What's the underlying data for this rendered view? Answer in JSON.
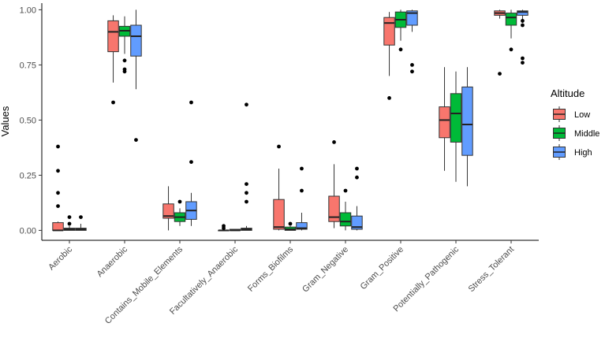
{
  "chart_data": {
    "type": "boxplot",
    "title": "",
    "xlabel": "",
    "ylabel": "Values",
    "ylim": [
      -0.045,
      1.03
    ],
    "yticks": [
      0.0,
      0.25,
      0.5,
      0.75,
      1.0
    ],
    "ytick_labels": [
      "0.00",
      "0.25",
      "0.50",
      "0.75",
      "1.00"
    ],
    "grid": false,
    "legend": {
      "title": "Altitude",
      "position": "right"
    },
    "categories": [
      "Aerobic",
      "Anaerobic",
      "Contains_Mobile_Elements",
      "Facultatively_Anaerobic",
      "Forms_Biofilms",
      "Gram_Negative",
      "Gram_Positive",
      "Potentially_Pathogenic",
      "Stress_Tolerant"
    ],
    "series": [
      {
        "name": "Low",
        "color": "#F8766D",
        "boxes": [
          {
            "whislo": 0.0,
            "q1": 0.0,
            "med": 0.0,
            "q3": 0.035,
            "whishi": 0.04,
            "fliers": [
              0.11,
              0.17,
              0.27,
              0.38
            ]
          },
          {
            "whislo": 0.67,
            "q1": 0.81,
            "med": 0.9,
            "q3": 0.95,
            "whishi": 0.975,
            "fliers": [
              0.58
            ]
          },
          {
            "whislo": 0.0,
            "q1": 0.055,
            "med": 0.065,
            "q3": 0.12,
            "whishi": 0.2,
            "fliers": []
          },
          {
            "whislo": 0.0,
            "q1": 0.0,
            "med": 0.0,
            "q3": 0.0,
            "whishi": 0.0,
            "fliers": [
              0.01,
              0.02
            ]
          },
          {
            "whislo": 0.0,
            "q1": 0.005,
            "med": 0.015,
            "q3": 0.14,
            "whishi": 0.28,
            "fliers": [
              0.38
            ]
          },
          {
            "whislo": 0.01,
            "q1": 0.04,
            "med": 0.06,
            "q3": 0.155,
            "whishi": 0.3,
            "fliers": [
              0.4
            ]
          },
          {
            "whislo": 0.7,
            "q1": 0.84,
            "med": 0.94,
            "q3": 0.965,
            "whishi": 0.99,
            "fliers": [
              0.6
            ]
          },
          {
            "whislo": 0.27,
            "q1": 0.42,
            "med": 0.5,
            "q3": 0.56,
            "whishi": 0.74,
            "fliers": []
          },
          {
            "whislo": 0.96,
            "q1": 0.975,
            "med": 0.985,
            "q3": 0.995,
            "whishi": 1.0,
            "fliers": [
              0.71
            ]
          }
        ]
      },
      {
        "name": "Middle",
        "color": "#00BA38",
        "boxes": [
          {
            "whislo": 0.0,
            "q1": 0.0,
            "med": 0.005,
            "q3": 0.01,
            "whishi": 0.02,
            "fliers": [
              0.03,
              0.06
            ]
          },
          {
            "whislo": 0.8,
            "q1": 0.88,
            "med": 0.905,
            "q3": 0.925,
            "whishi": 0.97,
            "fliers": [
              0.72,
              0.73,
              0.77
            ]
          },
          {
            "whislo": 0.02,
            "q1": 0.04,
            "med": 0.06,
            "q3": 0.08,
            "whishi": 0.1,
            "fliers": [
              0.13
            ]
          },
          {
            "whislo": 0.0,
            "q1": 0.0,
            "med": 0.0,
            "q3": 0.005,
            "whishi": 0.005,
            "fliers": []
          },
          {
            "whislo": 0.0,
            "q1": 0.0,
            "med": 0.005,
            "q3": 0.015,
            "whishi": 0.02,
            "fliers": [
              0.03
            ]
          },
          {
            "whislo": 0.0,
            "q1": 0.02,
            "med": 0.04,
            "q3": 0.08,
            "whishi": 0.13,
            "fliers": [
              0.18
            ]
          },
          {
            "whislo": 0.86,
            "q1": 0.92,
            "med": 0.955,
            "q3": 0.99,
            "whishi": 1.0,
            "fliers": [
              0.82
            ]
          },
          {
            "whislo": 0.22,
            "q1": 0.4,
            "med": 0.53,
            "q3": 0.62,
            "whishi": 0.72,
            "fliers": []
          },
          {
            "whislo": 0.87,
            "q1": 0.93,
            "med": 0.965,
            "q3": 0.985,
            "whishi": 1.0,
            "fliers": [
              0.82
            ]
          }
        ]
      },
      {
        "name": "High",
        "color": "#619CFF",
        "boxes": [
          {
            "whislo": 0.0,
            "q1": 0.0,
            "med": 0.005,
            "q3": 0.01,
            "whishi": 0.03,
            "fliers": [
              0.06
            ]
          },
          {
            "whislo": 0.64,
            "q1": 0.79,
            "med": 0.88,
            "q3": 0.93,
            "whishi": 1.0,
            "fliers": [
              0.41
            ]
          },
          {
            "whislo": 0.02,
            "q1": 0.05,
            "med": 0.09,
            "q3": 0.13,
            "whishi": 0.17,
            "fliers": [
              0.31,
              0.58
            ]
          },
          {
            "whislo": 0.0,
            "q1": 0.0,
            "med": 0.005,
            "q3": 0.01,
            "whishi": 0.02,
            "fliers": [
              0.13,
              0.17,
              0.21,
              0.57
            ]
          },
          {
            "whislo": 0.0,
            "q1": 0.005,
            "med": 0.01,
            "q3": 0.035,
            "whishi": 0.08,
            "fliers": [
              0.18,
              0.28
            ]
          },
          {
            "whislo": 0.0,
            "q1": 0.005,
            "med": 0.015,
            "q3": 0.065,
            "whishi": 0.11,
            "fliers": [
              0.24,
              0.28
            ]
          },
          {
            "whislo": 0.9,
            "q1": 0.93,
            "med": 0.985,
            "q3": 0.995,
            "whishi": 1.0,
            "fliers": [
              0.72,
              0.75
            ]
          },
          {
            "whislo": 0.2,
            "q1": 0.34,
            "med": 0.48,
            "q3": 0.65,
            "whishi": 0.74,
            "fliers": []
          },
          {
            "whislo": 0.94,
            "q1": 0.975,
            "med": 0.99,
            "q3": 0.995,
            "whishi": 1.0,
            "fliers": [
              0.76,
              0.78,
              0.93,
              0.95
            ]
          }
        ]
      }
    ]
  }
}
